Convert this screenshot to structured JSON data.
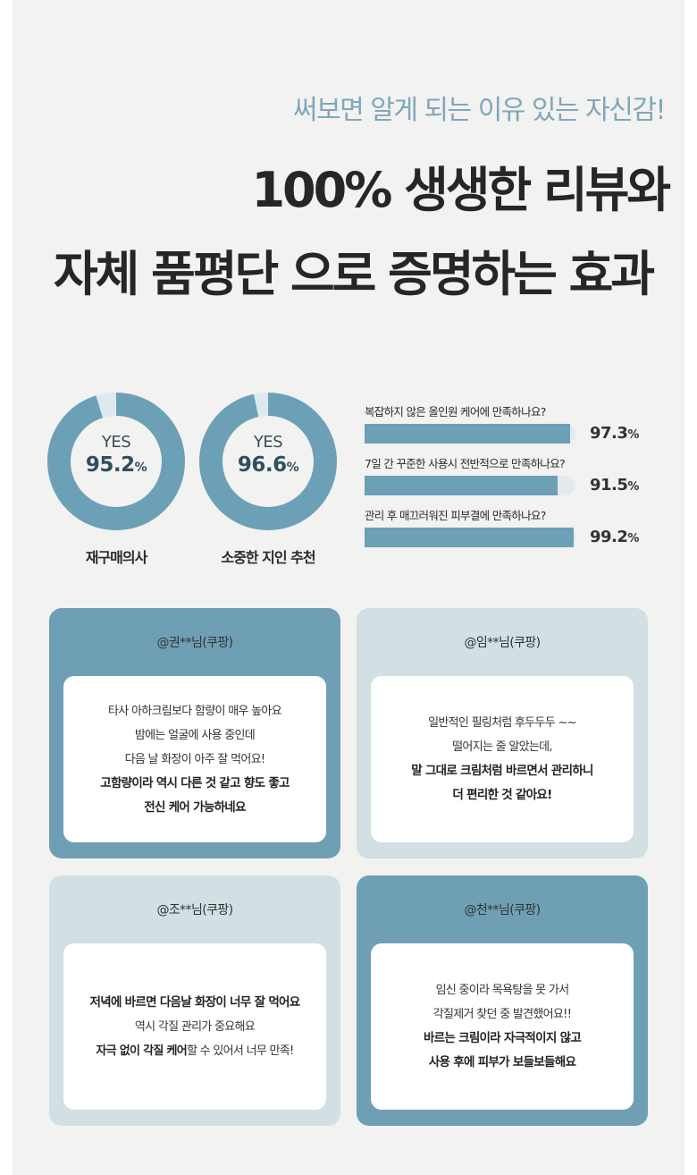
{
  "header": {
    "eyebrow": "써보면 알게 되는 이유 있는 자신감!",
    "line1_highlight": "100% 생생한 리뷰",
    "line1_rest": "와",
    "line2_highlight": "자체 품평단",
    "line2_rest": " 으로 증명하는 효과"
  },
  "donuts": [
    {
      "yes": "YES",
      "value": "95.2",
      "unit": "%",
      "label": "재구매의사",
      "fraction": 0.952
    },
    {
      "yes": "YES",
      "value": "96.6",
      "unit": "%",
      "label": "소중한 지인 추천",
      "fraction": 0.966
    }
  ],
  "bars": [
    {
      "question": "복잡하지 않은 올인원 케어에 만족하나요?",
      "value": "97.3",
      "unit": "%",
      "fraction": 0.973
    },
    {
      "question": "7일 간 꾸준한 사용시 전반적으로 만족하나요?",
      "value": "91.5",
      "unit": "%",
      "fraction": 0.915
    },
    {
      "question": "관리 후 매끄러워진 피부결에 만족하나요?",
      "value": "99.2",
      "unit": "%",
      "fraction": 0.992
    }
  ],
  "reviews": [
    {
      "author": "@권**님(쿠팡)",
      "lines": [
        {
          "text": "타사 아하크림보다 함량이 매우 높아요",
          "bold": false
        },
        {
          "text": "밤에는 얼굴에 사용 중인데",
          "bold": false
        },
        {
          "text": "다음 날 화장이 아주 잘 먹어요!",
          "bold": false
        },
        {
          "text": "고함량이라 역시 다른 것 같고 향도 좋고",
          "bold": true
        },
        {
          "text": "전신 케어 가능하네요",
          "bold": true
        }
      ]
    },
    {
      "author": "@임**님(쿠팡)",
      "lines": [
        {
          "text": "일반적인 필링처럼 후두두두 ~~",
          "bold": false
        },
        {
          "text": "떨어지는 줄 알았는데,",
          "bold": false
        },
        {
          "text": "말 그대로 크림처럼 바르면서 관리하니",
          "bold": true
        },
        {
          "text": "더 편리한 것 같아요!",
          "bold": true
        }
      ]
    },
    {
      "author": "@조**님(쿠팡)",
      "lines": [
        {
          "text": "저녁에 바르면 다음날 화장이 너무 잘 먹어요",
          "bold": true
        },
        {
          "text": "역시 각질 관리가 중요해요",
          "bold": false
        }
      ],
      "mixed_bold": "자극 없이 각질 케어",
      "mixed_rest": "할 수 있어서 너무 만족!"
    },
    {
      "author": "@천**님(쿠팡)",
      "lines": [
        {
          "text": "임신 중이라 목욕탕을 못 가서",
          "bold": false
        },
        {
          "text": "각질제거 찾던 중 발견했어요!!",
          "bold": false
        },
        {
          "text": "바르는 크림이라 자극적이지 않고",
          "bold": true
        },
        {
          "text": "사용 후에 피부가 보들보들해요",
          "bold": true
        }
      ]
    }
  ],
  "colors": {
    "accent": "#6f9fb4",
    "light": "#d2dfe3",
    "highlight": "#a9d0e1",
    "eyebrow": "#7fa7bb"
  }
}
